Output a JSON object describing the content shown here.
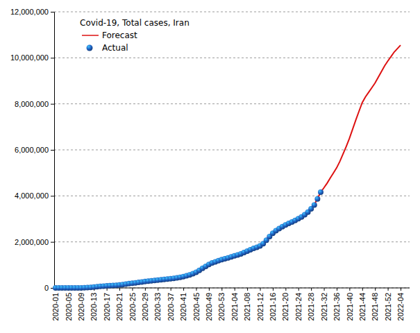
{
  "chart_data": {
    "type": "line",
    "title": "Covid-19, Total cases, Iran",
    "categories": [
      "2020-01",
      null,
      null,
      null,
      "2020-05",
      null,
      null,
      null,
      "2020-09",
      null,
      null,
      null,
      "2020-13",
      null,
      null,
      null,
      "2020-17",
      null,
      null,
      null,
      "2020-21",
      null,
      null,
      null,
      "2020-25",
      null,
      null,
      null,
      "2020-29",
      null,
      null,
      null,
      "2020-33",
      null,
      null,
      null,
      "2020-37",
      null,
      null,
      null,
      "2020-41",
      null,
      null,
      null,
      "2020-45",
      null,
      null,
      null,
      "2020-49",
      null,
      null,
      null,
      "2020-53",
      null,
      null,
      null,
      "2021-04",
      null,
      null,
      null,
      "2021-08",
      null,
      null,
      null,
      "2021-12",
      null,
      null,
      null,
      "2021-16",
      null,
      null,
      null,
      "2021-20",
      null,
      null,
      null,
      "2021-24",
      null,
      null,
      null,
      "2021-28",
      null,
      null,
      null,
      "2021-32",
      null,
      null,
      null,
      "2021-36",
      null,
      null,
      null,
      "2021-40",
      null,
      null,
      null,
      "2021-44",
      null,
      null,
      null,
      "2021-48",
      null,
      null,
      null,
      "2021-52",
      null,
      null,
      null,
      "2022-04"
    ],
    "series": [
      {
        "name": "Forecast",
        "type": "line",
        "color": "#dd1111",
        "line_style": "solid",
        "values": [
          0,
          0,
          0,
          0,
          0,
          0,
          0,
          2000,
          5000,
          10000,
          16000,
          25000,
          37000,
          52000,
          66000,
          78000,
          88000,
          97000,
          106000,
          116000,
          128000,
          145000,
          164000,
          183000,
          200000,
          218000,
          237000,
          256000,
          275000,
          292000,
          307000,
          322000,
          338000,
          354000,
          370000,
          386000,
          402000,
          420000,
          442000,
          468000,
          500000,
          535000,
          578000,
          630000,
          692000,
          770000,
          858000,
          938000,
          1015000,
          1080000,
          1130000,
          1178000,
          1222000,
          1262000,
          1300000,
          1340000,
          1382000,
          1425000,
          1472000,
          1528000,
          1588000,
          1650000,
          1708000,
          1762000,
          1830000,
          1935000,
          2080000,
          2236000,
          2372000,
          2480000,
          2570000,
          2656000,
          2728000,
          2798000,
          2860000,
          2930000,
          3005000,
          3090000,
          3190000,
          3305000,
          3450000,
          3620000,
          3880000,
          4160000,
          4350000,
          4550000,
          4780000,
          5000000,
          5220000,
          5500000,
          5820000,
          6150000,
          6500000,
          6900000,
          7300000,
          7680000,
          8050000,
          8300000,
          8500000,
          8700000,
          8900000,
          9150000,
          9400000,
          9650000,
          9860000,
          10050000,
          10250000,
          10400000,
          10550000
        ]
      },
      {
        "name": "Actual",
        "type": "scatter",
        "color": "#1f5fc0",
        "marker": "circle",
        "values": [
          0,
          0,
          0,
          0,
          0,
          0,
          0,
          0,
          1000,
          9000,
          15000,
          23000,
          38000,
          56000,
          68000,
          79000,
          89000,
          96000,
          105000,
          113000,
          125000,
          144000,
          164000,
          185000,
          200000,
          218000,
          238000,
          257000,
          276000,
          294000,
          307000,
          323000,
          339000,
          355000,
          372000,
          385000,
          400000,
          416000,
          436000,
          461000,
          492000,
          526000,
          569000,
          620000,
          682000,
          762000,
          854000,
          936000,
          1017000,
          1083000,
          1131000,
          1180000,
          1225000,
          1268000,
          1305000,
          1348000,
          1392000,
          1434000,
          1481000,
          1540000,
          1599000,
          1660000,
          1715000,
          1765000,
          1824000,
          1921000,
          2070000,
          2234000,
          2378000,
          2489000,
          2575000,
          2663000,
          2734000,
          2804000,
          2863000,
          2932000,
          3005000,
          3085000,
          3183000,
          3297000,
          3440000,
          3604000,
          3869000,
          4158000,
          null,
          null,
          null,
          null,
          null,
          null,
          null,
          null,
          null,
          null,
          null,
          null,
          null,
          null,
          null,
          null,
          null,
          null,
          null,
          null,
          null,
          null,
          null,
          null,
          null
        ]
      }
    ],
    "ylim": [
      0,
      12000000
    ],
    "yticks": [
      0,
      {
        "value": 2000000,
        "label": "2,000,000"
      },
      {
        "value": 4000000,
        "label": "4,000,000"
      },
      {
        "value": 6000000,
        "label": "6,000,000"
      },
      {
        "value": 8000000,
        "label": "8,000,000"
      },
      {
        "value": 10000000,
        "label": "10,000,000"
      },
      {
        "value": 12000000,
        "label": "12,000,000"
      }
    ],
    "grid": true,
    "legend": "upper left"
  }
}
